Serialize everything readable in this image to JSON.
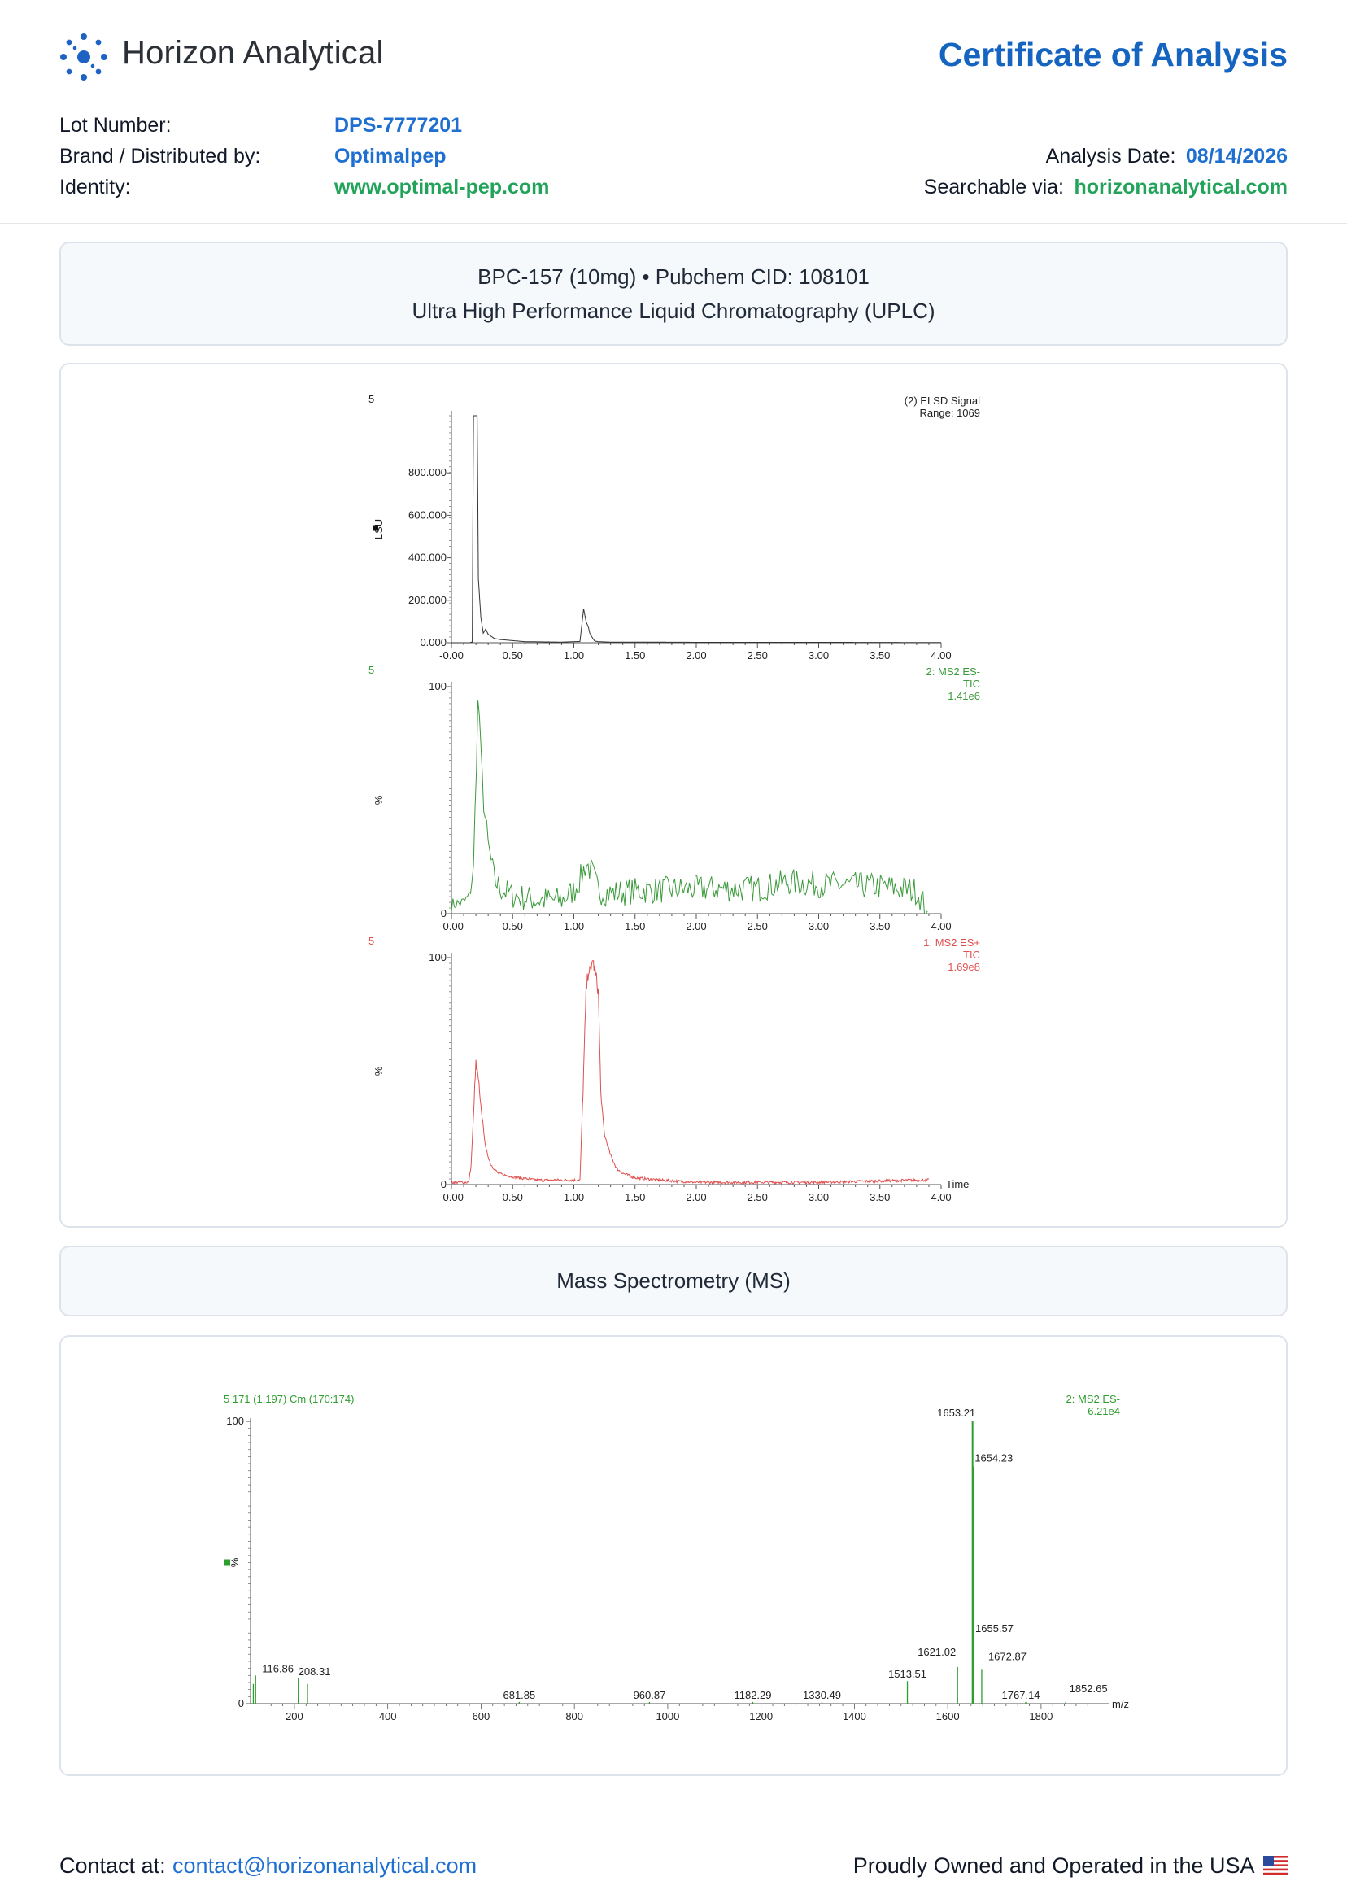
{
  "header": {
    "company": "Horizon Analytical",
    "logo_icon": "molecule-dots-logo",
    "doc_title": "Certificate of Analysis"
  },
  "fields": {
    "lot_label": "Lot Number:",
    "lot_value": "DPS-7777201",
    "brand_label": "Brand / Distributed by:",
    "brand_value": "Optimalpep",
    "identity_label": "Identity:",
    "identity_value": "www.optimal-pep.com",
    "date_label": "Analysis Date:",
    "date_value": "08/14/2026",
    "search_label": "Searchable via:",
    "search_value": "horizonanalytical.com"
  },
  "uplc_section": {
    "line1": "BPC-157 (10mg) • Pubchem CID: 108101",
    "line2": "Ultra High Performance Liquid Chromatography (UPLC)"
  },
  "ms_section": {
    "title": "Mass Spectrometry (MS)"
  },
  "footer": {
    "contact_label": "Contact at:",
    "contact_email": "contact@horizonanalytical.com",
    "made_in": "Proudly Owned and Operated in the USA",
    "flag_icon": "us-flag-icon"
  },
  "chart_data": [
    {
      "type": "line",
      "id": "elsd",
      "sample_label": "5",
      "label_lines": [
        "(2) ELSD Signal",
        "Range: 1069"
      ],
      "ylabel": "LSU",
      "x_ticks": [
        "-0.00",
        "0.50",
        "1.00",
        "1.50",
        "2.00",
        "2.50",
        "3.00",
        "3.50",
        "4.00"
      ],
      "y_ticks": [
        "0.000",
        "200.000",
        "400.000",
        "600.000",
        "800.000"
      ],
      "xlim": [
        0,
        4
      ],
      "ylim": [
        0,
        1069
      ],
      "color": "#333333",
      "series": [
        {
          "x": [
            0,
            0.15,
            0.17,
            0.18,
            0.19,
            0.2,
            0.21,
            0.22,
            0.24,
            0.26,
            0.28,
            0.3,
            0.35,
            0.4,
            0.5,
            0.6,
            0.9,
            1.05,
            1.08,
            1.1,
            1.12,
            1.13,
            1.15,
            1.17,
            1.2,
            1.3,
            1.5,
            2.0,
            3.0,
            4.0
          ],
          "y": [
            0,
            0,
            4,
            1069,
            1069,
            1069,
            1069,
            300,
            120,
            45,
            65,
            40,
            20,
            15,
            10,
            5,
            3,
            6,
            160,
            100,
            70,
            45,
            25,
            8,
            5,
            3,
            3,
            2,
            2,
            1
          ]
        }
      ]
    },
    {
      "type": "line",
      "id": "ms2-neg-tic",
      "sample_label": "5",
      "label_lines": [
        "2: MS2 ES-",
        "TIC",
        "1.41e6"
      ],
      "ylabel": "%",
      "x_ticks": [
        "-0.00",
        "0.50",
        "1.00",
        "1.50",
        "2.00",
        "2.50",
        "3.00",
        "3.50",
        "4.00"
      ],
      "y_ticks": [
        "0",
        "100"
      ],
      "xlim": [
        0,
        4
      ],
      "ylim": [
        0,
        100
      ],
      "color": "#3a9a3a",
      "noisy": true,
      "series": [
        {
          "x": [
            0,
            0.1,
            0.15,
            0.18,
            0.2,
            0.22,
            0.24,
            0.25,
            0.27,
            0.3,
            0.35,
            0.4,
            0.5,
            0.7,
            0.9,
            1.0,
            1.05,
            1.1,
            1.15,
            1.2,
            1.3,
            1.5,
            2.0,
            2.5,
            2.75,
            3.0,
            3.5,
            3.8,
            3.9
          ],
          "y": [
            4,
            5,
            8,
            20,
            60,
            100,
            70,
            60,
            45,
            30,
            15,
            11,
            8,
            6,
            6,
            10,
            15,
            22,
            18,
            10,
            9,
            10,
            11,
            11,
            14,
            13,
            12,
            10,
            0
          ]
        }
      ]
    },
    {
      "type": "line",
      "id": "ms2-pos-tic",
      "sample_label": "5",
      "label_lines": [
        "1: MS2 ES+",
        "TIC",
        "1.69e8"
      ],
      "ylabel": "%",
      "x_ticks": [
        "-0.00",
        "0.50",
        "1.00",
        "1.50",
        "2.00",
        "2.50",
        "3.00",
        "3.50",
        "4.00"
      ],
      "y_ticks": [
        "0",
        "100"
      ],
      "xlim": [
        0,
        4
      ],
      "ylim": [
        0,
        100
      ],
      "x_axis_title": "Time",
      "color": "#e05050",
      "series": [
        {
          "x": [
            0,
            0.14,
            0.16,
            0.18,
            0.2,
            0.22,
            0.25,
            0.28,
            0.32,
            0.38,
            0.45,
            0.55,
            0.7,
            0.9,
            1.05,
            1.08,
            1.1,
            1.12,
            1.14,
            1.15,
            1.16,
            1.18,
            1.2,
            1.22,
            1.25,
            1.3,
            1.35,
            1.4,
            1.5,
            1.7,
            2.0,
            3.0,
            3.8,
            3.9
          ],
          "y": [
            1,
            1,
            8,
            30,
            53,
            45,
            30,
            16,
            9,
            5,
            4,
            3,
            2,
            2,
            2,
            50,
            85,
            95,
            93,
            100,
            97,
            92,
            85,
            40,
            22,
            13,
            7,
            5,
            3,
            2,
            1,
            1,
            2,
            2
          ]
        }
      ]
    },
    {
      "type": "bar",
      "id": "ms-spectrum",
      "title": "5 171 (1.197) Cm (170:174)",
      "label_lines": [
        "2: MS2 ES-",
        "6.21e4"
      ],
      "ylabel": "%",
      "x_axis_title": "m/z",
      "x_ticks": [
        "200",
        "400",
        "600",
        "800",
        "1000",
        "1200",
        "1400",
        "1600",
        "1800"
      ],
      "y_ticks": [
        "0",
        "100"
      ],
      "xlim": [
        106,
        1910
      ],
      "ylim": [
        0,
        100
      ],
      "color": "#2e9e2e",
      "peaks": [
        {
          "mz": 112,
          "intensity": 7
        },
        {
          "mz": 116.86,
          "intensity": 10,
          "label": "116.86"
        },
        {
          "mz": 208.31,
          "intensity": 9,
          "label": "208.31"
        },
        {
          "mz": 228,
          "intensity": 7
        },
        {
          "mz": 681.85,
          "intensity": 0.6,
          "label": "681.85"
        },
        {
          "mz": 960.87,
          "intensity": 0.6,
          "label": "960.87"
        },
        {
          "mz": 1182.29,
          "intensity": 0.6,
          "label": "1182.29"
        },
        {
          "mz": 1330.49,
          "intensity": 0.6,
          "label": "1330.49"
        },
        {
          "mz": 1513.51,
          "intensity": 8,
          "label": "1513.51"
        },
        {
          "mz": 1621.02,
          "intensity": 13,
          "label": "1621.02"
        },
        {
          "mz": 1653.21,
          "intensity": 100,
          "label": "1653.21"
        },
        {
          "mz": 1654.23,
          "intensity": 84,
          "label": "1654.23"
        },
        {
          "mz": 1655.57,
          "intensity": 23,
          "label": "1655.57"
        },
        {
          "mz": 1672.87,
          "intensity": 12,
          "label": "1672.87"
        },
        {
          "mz": 1767.14,
          "intensity": 0.6,
          "label": "1767.14"
        },
        {
          "mz": 1852.65,
          "intensity": 0.6,
          "label": "1852.65"
        }
      ]
    }
  ]
}
